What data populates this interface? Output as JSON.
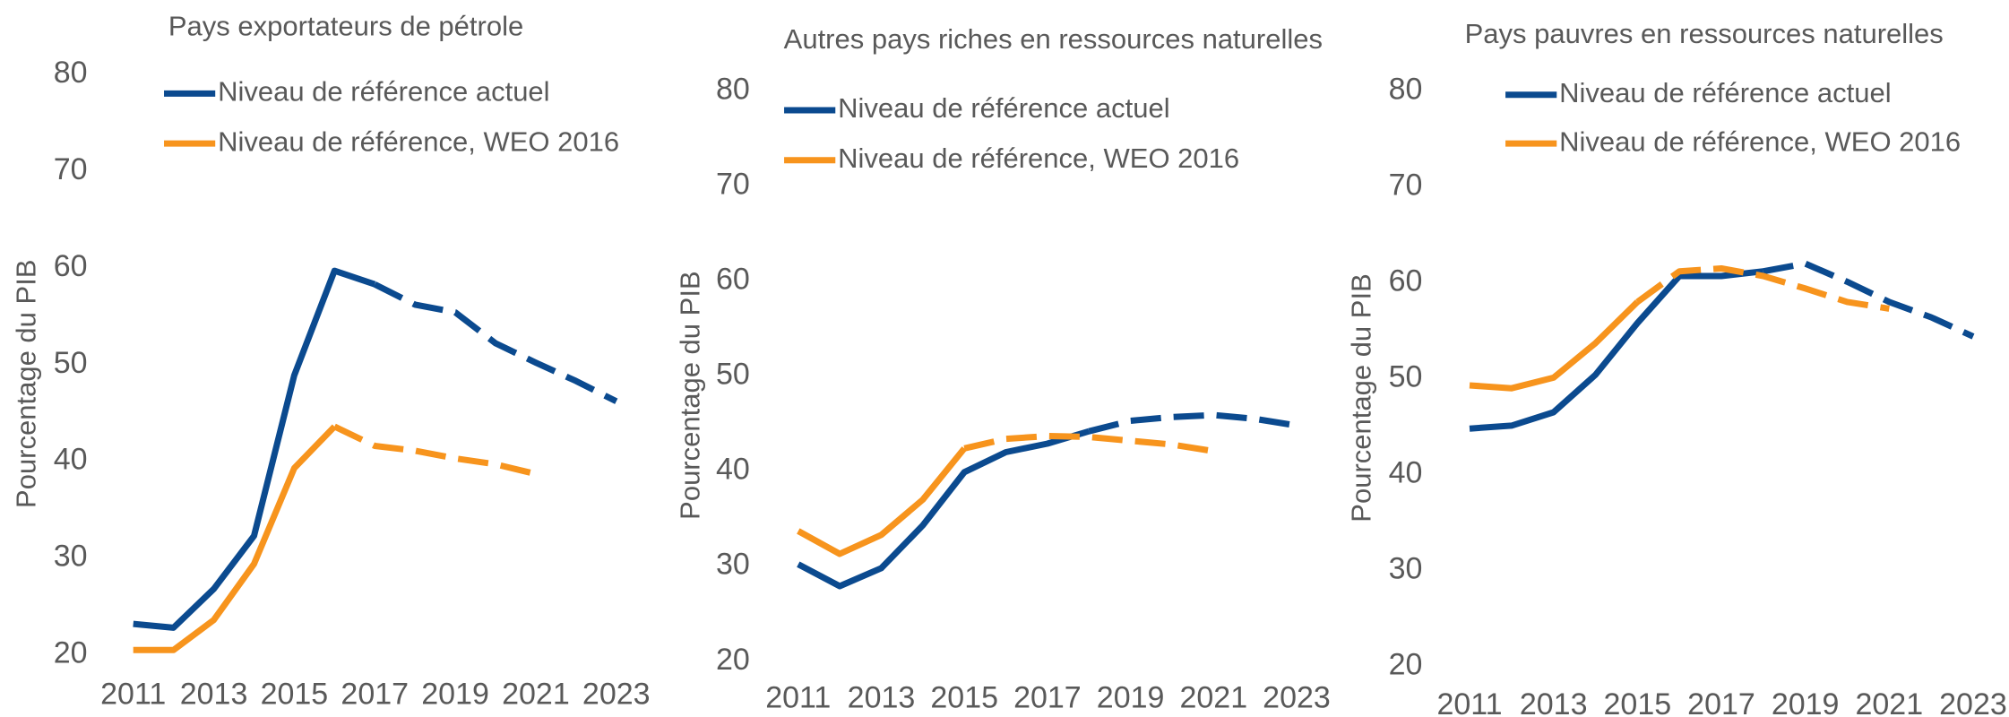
{
  "chart_data": [
    {
      "type": "line",
      "title": "Pays exportateurs de pétrole",
      "y_label": "Pourcentage du PIB",
      "x": [
        2011,
        2012,
        2013,
        2014,
        2015,
        2016,
        2017,
        2018,
        2019,
        2020,
        2021,
        2022,
        2023
      ],
      "xlim": [
        2011,
        2023
      ],
      "xticks": [
        2011,
        2013,
        2015,
        2017,
        2019,
        2021,
        2023
      ],
      "ylim": [
        20,
        80
      ],
      "yticks": [
        20,
        30,
        40,
        50,
        60,
        70,
        80
      ],
      "grid": false,
      "series": [
        {
          "name": "Niveau de référence actuel",
          "color": "#0b4a8f",
          "dashed_from": 2017,
          "values": [
            23.2,
            22.8,
            26.8,
            32.3,
            48.9,
            59.7,
            58.3,
            56.2,
            55.4,
            52.2,
            50.2,
            48.3,
            46.2
          ]
        },
        {
          "name": "Niveau de référence, WEO 2016",
          "color": "#f7941d",
          "dashed_from": 2016,
          "values": [
            20.5,
            20.5,
            23.6,
            29.4,
            39.3,
            43.6,
            41.6,
            41.1,
            40.3,
            39.7,
            38.7,
            null,
            null
          ]
        }
      ]
    },
    {
      "type": "line",
      "title": "Autres pays riches en ressources naturelles",
      "y_label": "Pourcentage du PIB",
      "x": [
        2011,
        2012,
        2013,
        2014,
        2015,
        2016,
        2017,
        2018,
        2019,
        2020,
        2021,
        2022,
        2023
      ],
      "xlim": [
        2011,
        2023
      ],
      "xticks": [
        2011,
        2013,
        2015,
        2017,
        2019,
        2021,
        2023
      ],
      "ylim": [
        20,
        80
      ],
      "yticks": [
        20,
        30,
        40,
        50,
        60,
        70,
        80
      ],
      "grid": false,
      "series": [
        {
          "name": "Niveau de référence actuel",
          "color": "#0b4a8f",
          "dashed_from": 2018,
          "values": [
            30.2,
            27.9,
            29.8,
            34.3,
            39.9,
            42.0,
            42.9,
            44.2,
            45.3,
            45.7,
            45.9,
            45.5,
            44.8
          ]
        },
        {
          "name": "Niveau de référence, WEO 2016",
          "color": "#f7941d",
          "dashed_from": 2015,
          "values": [
            33.7,
            31.3,
            33.3,
            37.0,
            42.4,
            43.4,
            43.7,
            43.6,
            43.2,
            42.8,
            42.1,
            null,
            null
          ]
        }
      ]
    },
    {
      "type": "line",
      "title": "Pays pauvres en ressources naturelles",
      "y_label": "Pourcentage du PIB",
      "x": [
        2011,
        2012,
        2013,
        2014,
        2015,
        2016,
        2017,
        2018,
        2019,
        2020,
        2021,
        2022,
        2023
      ],
      "xlim": [
        2011,
        2023
      ],
      "xticks": [
        2011,
        2013,
        2015,
        2017,
        2019,
        2021,
        2023
      ],
      "ylim": [
        20,
        80
      ],
      "yticks": [
        20,
        30,
        40,
        50,
        60,
        70,
        80
      ],
      "grid": false,
      "series": [
        {
          "name": "Niveau de référence actuel",
          "color": "#0b4a8f",
          "dashed_from": 2018,
          "values": [
            44.8,
            45.1,
            46.5,
            50.4,
            55.8,
            60.7,
            60.7,
            61.2,
            62.0,
            60.1,
            58.0,
            56.4,
            54.4
          ]
        },
        {
          "name": "Niveau de référence, WEO 2016",
          "color": "#f7941d",
          "dashed_from": 2015,
          "values": [
            49.3,
            49.0,
            50.1,
            53.7,
            58.0,
            61.2,
            61.5,
            60.7,
            59.4,
            58.0,
            57.3,
            null,
            null
          ]
        }
      ]
    }
  ]
}
